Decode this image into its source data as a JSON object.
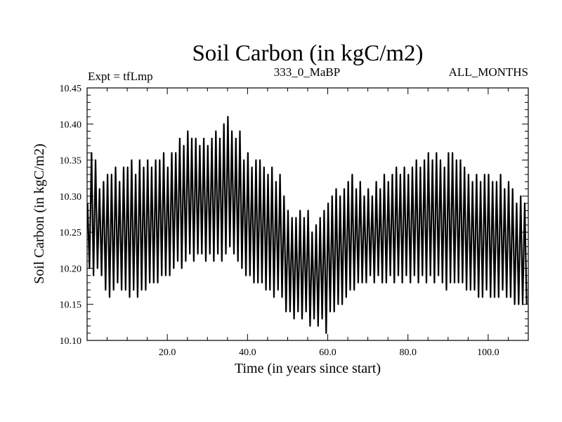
{
  "chart_data": {
    "type": "line",
    "title": "Soil Carbon (in kgC/m2)",
    "subtitle_left": "Expt = tfLmp",
    "subtitle_center": "333_0_MaBP",
    "subtitle_right": "ALL_MONTHS",
    "xlabel": "Time (in years since start)",
    "ylabel": "Soil Carbon (in kgC/m2)",
    "xlim": [
      0,
      110
    ],
    "ylim": [
      10.1,
      10.45
    ],
    "xticks": [
      20,
      40,
      60,
      80,
      100
    ],
    "xtick_labels": [
      "20.0",
      "40.0",
      "60.0",
      "80.0",
      "100.0"
    ],
    "yticks": [
      10.1,
      10.15,
      10.2,
      10.25,
      10.3,
      10.35,
      10.4,
      10.45
    ],
    "ytick_labels": [
      "10.10",
      "10.15",
      "10.20",
      "10.25",
      "10.30",
      "10.35",
      "10.40",
      "10.45"
    ],
    "series": [
      {
        "name": "Soil Carbon",
        "note": "annual cycle: values oscillate between yearly max and min",
        "years": [
          0,
          1,
          2,
          3,
          4,
          5,
          6,
          7,
          8,
          9,
          10,
          11,
          12,
          13,
          14,
          15,
          16,
          17,
          18,
          19,
          20,
          21,
          22,
          23,
          24,
          25,
          26,
          27,
          28,
          29,
          30,
          31,
          32,
          33,
          34,
          35,
          36,
          37,
          38,
          39,
          40,
          41,
          42,
          43,
          44,
          45,
          46,
          47,
          48,
          49,
          50,
          51,
          52,
          53,
          54,
          55,
          56,
          57,
          58,
          59,
          60,
          61,
          62,
          63,
          64,
          65,
          66,
          67,
          68,
          69,
          70,
          71,
          72,
          73,
          74,
          75,
          76,
          77,
          78,
          79,
          80,
          81,
          82,
          83,
          84,
          85,
          86,
          87,
          88,
          89,
          90,
          91,
          92,
          93,
          94,
          95,
          96,
          97,
          98,
          99,
          100,
          101,
          102,
          103,
          104,
          105,
          106,
          107,
          108,
          109
        ],
        "annual_max": [
          10.29,
          10.36,
          10.35,
          10.31,
          10.32,
          10.33,
          10.33,
          10.34,
          10.32,
          10.34,
          10.34,
          10.35,
          10.33,
          10.35,
          10.34,
          10.35,
          10.34,
          10.35,
          10.35,
          10.36,
          10.34,
          10.36,
          10.36,
          10.38,
          10.37,
          10.39,
          10.38,
          10.38,
          10.37,
          10.38,
          10.37,
          10.38,
          10.39,
          10.38,
          10.4,
          10.41,
          10.39,
          10.38,
          10.39,
          10.35,
          10.36,
          10.34,
          10.35,
          10.35,
          10.34,
          10.33,
          10.34,
          10.32,
          10.33,
          10.3,
          10.28,
          10.27,
          10.27,
          10.28,
          10.27,
          10.28,
          10.25,
          10.26,
          10.27,
          10.28,
          10.29,
          10.3,
          10.31,
          10.3,
          10.31,
          10.32,
          10.33,
          10.31,
          10.32,
          10.3,
          10.31,
          10.3,
          10.32,
          10.31,
          10.33,
          10.32,
          10.33,
          10.34,
          10.33,
          10.34,
          10.33,
          10.34,
          10.35,
          10.34,
          10.35,
          10.36,
          10.35,
          10.36,
          10.35,
          10.34,
          10.36,
          10.36,
          10.35,
          10.35,
          10.34,
          10.33,
          10.32,
          10.33,
          10.32,
          10.33,
          10.33,
          10.32,
          10.32,
          10.33,
          10.31,
          10.32,
          10.31,
          10.29,
          10.3,
          10.29
        ],
        "annual_min": [
          10.2,
          10.19,
          10.2,
          10.19,
          10.17,
          10.16,
          10.17,
          10.18,
          10.17,
          10.17,
          10.16,
          10.17,
          10.16,
          10.17,
          10.17,
          10.18,
          10.18,
          10.18,
          10.19,
          10.19,
          10.19,
          10.2,
          10.21,
          10.2,
          10.21,
          10.22,
          10.21,
          10.22,
          10.22,
          10.21,
          10.22,
          10.21,
          10.22,
          10.21,
          10.22,
          10.23,
          10.22,
          10.21,
          10.2,
          10.19,
          10.19,
          10.18,
          10.18,
          10.18,
          10.17,
          10.17,
          10.16,
          10.17,
          10.16,
          10.14,
          10.14,
          10.13,
          10.14,
          10.13,
          10.14,
          10.12,
          10.13,
          10.12,
          10.13,
          10.11,
          10.14,
          10.14,
          10.15,
          10.15,
          10.16,
          10.17,
          10.17,
          10.18,
          10.18,
          10.18,
          10.19,
          10.18,
          10.19,
          10.18,
          10.18,
          10.19,
          10.18,
          10.19,
          10.18,
          10.19,
          10.18,
          10.19,
          10.18,
          10.19,
          10.18,
          10.19,
          10.18,
          10.19,
          10.18,
          10.17,
          10.18,
          10.18,
          10.18,
          10.18,
          10.17,
          10.17,
          10.17,
          10.16,
          10.16,
          10.17,
          10.16,
          10.16,
          10.16,
          10.17,
          10.16,
          10.16,
          10.15,
          10.15,
          10.15,
          10.15
        ]
      }
    ],
    "grid": false,
    "line_color": "#000000"
  }
}
